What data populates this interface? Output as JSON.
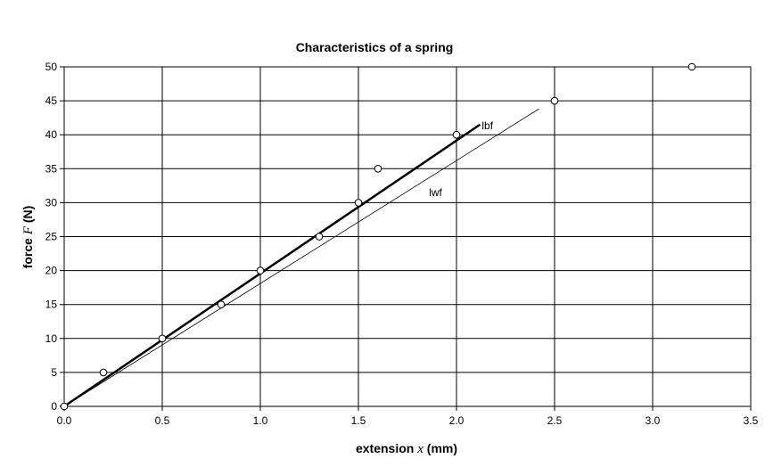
{
  "chart_data": {
    "type": "scatter",
    "title": "Characteristics of a spring",
    "xlabel": {
      "prefix": "extension",
      "var": "x",
      "unit": "(mm)"
    },
    "ylabel": {
      "prefix": "force",
      "var": "F",
      "unit": "(N)"
    },
    "xlim": [
      0,
      3.5
    ],
    "ylim": [
      0,
      50
    ],
    "xticks": [
      0.0,
      0.5,
      1.0,
      1.5,
      2.0,
      2.5,
      3.0,
      3.5
    ],
    "xtick_labels": [
      "0.0",
      "0.5",
      "1.0",
      "1.5",
      "2.0",
      "2.5",
      "3.0",
      "3.5"
    ],
    "yticks": [
      0,
      5,
      10,
      15,
      20,
      25,
      30,
      35,
      40,
      45,
      50
    ],
    "ytick_labels": [
      "0",
      "5",
      "10",
      "15",
      "20",
      "25",
      "30",
      "35",
      "40",
      "45",
      "50"
    ],
    "grid": true,
    "legend": "none",
    "points": {
      "x": [
        0,
        0.2,
        0.5,
        0.8,
        1.0,
        1.3,
        1.5,
        1.6,
        2.0,
        2.5,
        3.2
      ],
      "y": [
        0,
        5,
        10,
        15,
        20,
        25,
        30,
        35,
        40,
        45,
        50
      ]
    },
    "lines": [
      {
        "label": "lbf",
        "x": [
          0,
          2.12
        ],
        "y": [
          0,
          41.5
        ],
        "style": "bold"
      },
      {
        "label": "lwf",
        "x": [
          0,
          2.42
        ],
        "y": [
          0,
          43.8
        ],
        "style": "thin"
      }
    ]
  }
}
